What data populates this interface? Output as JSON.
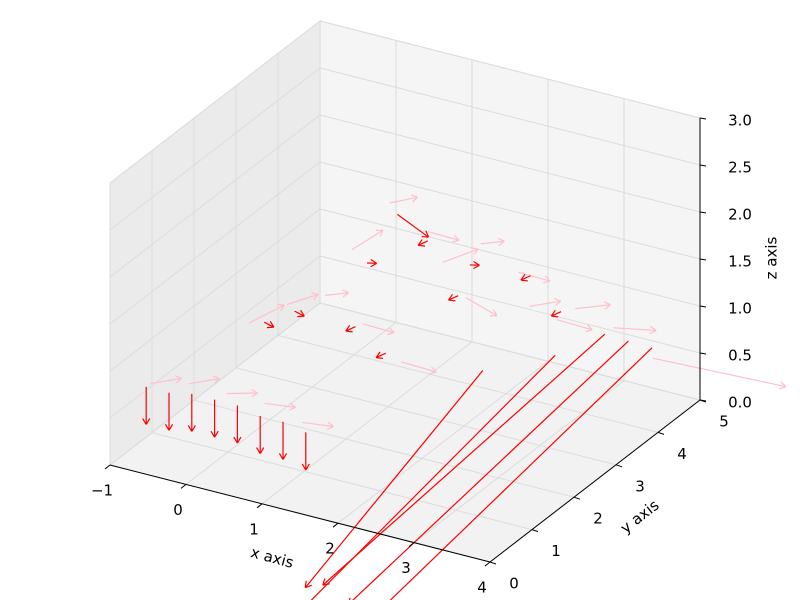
{
  "chart_data": {
    "type": "quiver3d",
    "xlabel": "x axis",
    "ylabel": "y axis",
    "zlabel": "z axis",
    "xlim": [
      -1,
      4
    ],
    "ylim": [
      0,
      5
    ],
    "zlim": [
      0,
      3
    ],
    "xticks": [
      {
        "value": -1,
        "label": "−1"
      },
      0,
      1,
      2,
      3,
      4
    ],
    "yticks": [
      0,
      1,
      2,
      3,
      4,
      5
    ],
    "zticks": [
      {
        "value": 0,
        "label": "0.0"
      },
      {
        "value": 0.5,
        "label": "0.5"
      },
      {
        "value": 1,
        "label": "1.0"
      },
      {
        "value": 1.5,
        "label": "1.5"
      },
      {
        "value": 2,
        "label": "2.0"
      },
      {
        "value": 2.5,
        "label": "2.5"
      },
      {
        "value": 3,
        "label": "3.0"
      }
    ],
    "grid": true,
    "series": [
      {
        "color": "#ffc0cb",
        "x": [
          -0.8,
          -0.3,
          0.2,
          0.7,
          1.2,
          0.0,
          0.5,
          1.0,
          1.5,
          2.0,
          0.8,
          1.3,
          1.8,
          2.3,
          1.5,
          2.0,
          2.5,
          3.0,
          2.2,
          2.8,
          3.3,
          3.6
        ],
        "y": [
          0.6,
          0.6,
          0.6,
          0.6,
          0.6,
          1.5,
          1.5,
          1.5,
          1.5,
          1.5,
          2.5,
          2.5,
          2.5,
          2.5,
          3.4,
          3.4,
          3.4,
          3.4,
          4.2,
          4.2,
          4.2,
          4.6
        ],
        "z": [
          0.7,
          0.8,
          0.8,
          0.8,
          0.7,
          1.2,
          1.5,
          1.7,
          1.5,
          1.2,
          1.8,
          2.4,
          2.2,
          1.6,
          1.5,
          1.8,
          1.6,
          1.2,
          0.9,
          1.0,
          0.9,
          0.5
        ],
        "u": [
          0.3,
          0.3,
          0.3,
          0.3,
          0.3,
          0.3,
          0.3,
          0.2,
          0.3,
          0.3,
          0.3,
          0.2,
          0.3,
          0.3,
          0.3,
          0.2,
          0.3,
          0.3,
          0.3,
          0.3,
          0.4,
          1.2
        ],
        "v": [
          0.2,
          0.2,
          0.2,
          0.2,
          0.2,
          0.3,
          0.2,
          0.2,
          0.2,
          0.3,
          0.2,
          0.3,
          0.2,
          0.2,
          0.3,
          0.2,
          0.2,
          0.3,
          0.2,
          0.3,
          0.3,
          1.0
        ],
        "w": [
          0.05,
          0.05,
          0.0,
          -0.05,
          -0.05,
          0.15,
          0.1,
          0.0,
          -0.1,
          -0.15,
          0.2,
          0.0,
          -0.1,
          -0.2,
          0.1,
          0.0,
          -0.1,
          -0.15,
          0.05,
          0.0,
          -0.05,
          -0.4
        ]
      },
      {
        "color": "#ff0000",
        "x": [
          -0.8,
          -0.5,
          -0.2,
          0.1,
          0.4,
          0.7,
          1.0,
          1.3,
          0.2,
          0.6,
          1.0,
          1.4,
          1.8,
          1.0,
          1.4,
          1.8,
          2.2,
          1.8,
          2.2,
          2.6,
          3.0,
          3.3,
          3.5,
          3.7,
          3.2,
          2.8
        ],
        "y": [
          0.5,
          0.5,
          0.5,
          0.5,
          0.5,
          0.5,
          0.5,
          0.5,
          1.5,
          1.5,
          1.5,
          1.5,
          1.5,
          2.5,
          2.5,
          2.5,
          2.5,
          3.5,
          3.5,
          3.5,
          3.5,
          4.0,
          4.2,
          4.4,
          3.0,
          2.0
        ],
        "z": [
          0.7,
          0.7,
          0.75,
          0.75,
          0.75,
          0.7,
          0.7,
          0.65,
          1.25,
          1.45,
          1.55,
          1.45,
          1.25,
          1.7,
          2.3,
          2.1,
          1.6,
          1.5,
          1.7,
          1.55,
          1.25,
          0.9,
          0.8,
          0.7,
          1.0,
          1.1
        ],
        "u": [
          0.0,
          0.0,
          0.0,
          0.0,
          0.0,
          0.0,
          0.0,
          0.0,
          0.1,
          0.1,
          0.0,
          -0.1,
          -0.1,
          0.1,
          0.3,
          -0.1,
          -0.1,
          0.1,
          0.0,
          -0.1,
          -0.1,
          -1.5,
          -1.2,
          -1.0,
          -1.4,
          -0.9
        ],
        "v": [
          0.0,
          0.0,
          0.0,
          0.0,
          0.0,
          0.0,
          0.0,
          0.0,
          0.05,
          0.05,
          0.0,
          -0.05,
          -0.05,
          0.05,
          0.2,
          -0.05,
          -0.05,
          0.05,
          0.0,
          -0.05,
          -0.05,
          -4.0,
          -4.5,
          -4.8,
          -3.6,
          -2.6
        ],
        "w": [
          -0.4,
          -0.4,
          -0.4,
          -0.4,
          -0.4,
          -0.4,
          -0.4,
          -0.4,
          -0.05,
          -0.05,
          0.0,
          -0.05,
          -0.05,
          0.0,
          -0.25,
          -0.05,
          -0.05,
          0.0,
          0.0,
          -0.05,
          -0.05,
          -1.6,
          -1.5,
          -1.4,
          -1.8,
          -1.6
        ]
      }
    ]
  }
}
